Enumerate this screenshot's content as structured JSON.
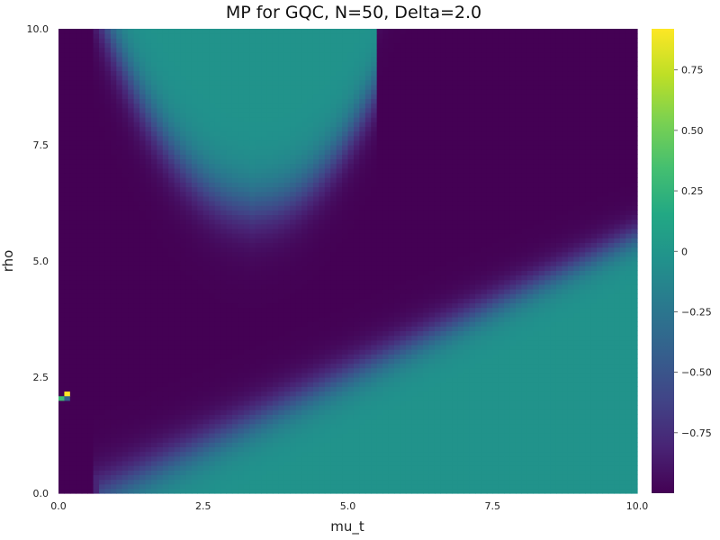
{
  "chart_data": {
    "type": "heatmap",
    "title": "MP for GQC, N=50, Delta=2.0",
    "xlabel": "mu_t",
    "ylabel": "rho",
    "xlim": [
      0.0,
      10.0
    ],
    "ylim": [
      0.0,
      10.0
    ],
    "x_ticks": [
      "0.0",
      "2.5",
      "5.0",
      "7.5",
      "10.0"
    ],
    "y_ticks": [
      "0.0",
      "2.5",
      "5.0",
      "7.5",
      "10.0"
    ],
    "colorbar": {
      "colormap": "viridis",
      "range": [
        -1.0,
        0.92
      ],
      "ticks": [
        "0.75",
        "0.50",
        "0.25",
        "0",
        "−0.25",
        "−0.50",
        "−0.75"
      ]
    },
    "grid_resolution": [
      100,
      100
    ],
    "regions": [
      {
        "description": "background value",
        "value": -0.02
      },
      {
        "description": "low region (dark)",
        "value": -1.0
      },
      {
        "description": "outlier cells near mu_t=0.1, rho=2.0-2.2",
        "values": [
          0.92,
          0.3,
          -0.4
        ]
      }
    ]
  }
}
